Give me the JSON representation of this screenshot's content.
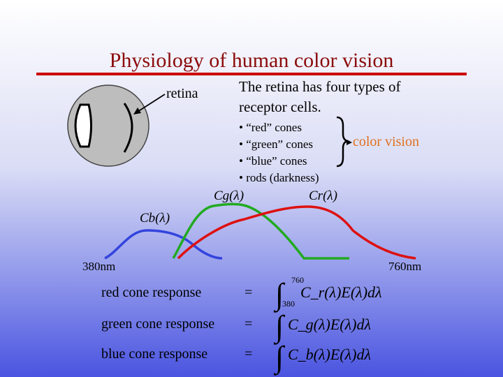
{
  "title": "Physiology of human color vision",
  "retina_label": "retina",
  "description": [
    "The retina has four types of",
    "receptor cells."
  ],
  "bullets": [
    "• “red” cones",
    "• “green” cones",
    "• “blue” cones",
    "• rods (darkness)"
  ],
  "color_vision": "color vision",
  "chart": {
    "x_min_label": "380nm",
    "x_max_label": "760nm",
    "series": [
      {
        "name": "Cb(λ)",
        "color": "#3344dd"
      },
      {
        "name": "Cg(λ)",
        "color": "#22aa22"
      },
      {
        "name": "Cr(λ)",
        "color": "#dd1111"
      }
    ]
  },
  "responses": [
    {
      "label": "red cone response",
      "eq": "=",
      "integrand": "C_r(λ)E(λ)dλ",
      "lower": "380",
      "upper": "760"
    },
    {
      "label": "green cone response",
      "eq": "=",
      "integrand": "C_g(λ)E(λ)dλ"
    },
    {
      "label": "blue cone response",
      "eq": "=",
      "integrand": "C_b(λ)E(λ)dλ"
    }
  ]
}
